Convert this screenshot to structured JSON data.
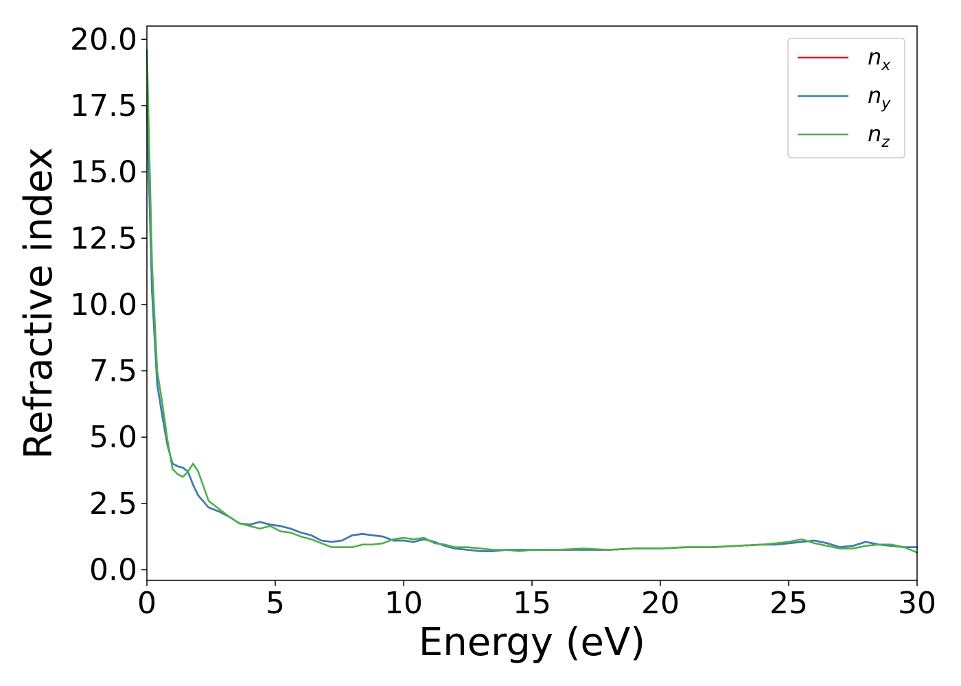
{
  "chart_data": {
    "type": "line",
    "title": "",
    "xlabel": "Energy (eV)",
    "ylabel": "Refractive index",
    "xlim": [
      0,
      30
    ],
    "ylim": [
      -0.4,
      20.5
    ],
    "xticks": [
      0,
      5,
      10,
      15,
      20,
      25,
      30
    ],
    "xtick_labels": [
      "0",
      "5",
      "10",
      "15",
      "20",
      "25",
      "30"
    ],
    "yticks": [
      0,
      2.5,
      5,
      7.5,
      10,
      12.5,
      15,
      17.5,
      20
    ],
    "ytick_labels": [
      "0.0",
      "2.5",
      "5.0",
      "7.5",
      "10.0",
      "12.5",
      "15.0",
      "17.5",
      "20.0"
    ],
    "grid": false,
    "legend_position": "top-right",
    "series": [
      {
        "name": "n_x",
        "legend_base": "n",
        "legend_sub": "x",
        "color": "#e41a1c",
        "x": [
          0,
          0.2,
          0.4,
          0.6,
          0.8,
          1.0,
          1.2,
          1.4,
          1.6,
          1.8,
          2.0,
          2.4,
          2.8,
          3.2,
          3.6,
          4.0,
          4.4,
          4.8,
          5.2,
          5.6,
          6.0,
          6.4,
          6.8,
          7.2,
          7.6,
          8.0,
          8.4,
          8.8,
          9.2,
          9.6,
          10.0,
          10.4,
          10.8,
          11.2,
          11.6,
          12.0,
          12.5,
          13.0,
          13.5,
          14.0,
          14.5,
          15.0,
          16.0,
          17.0,
          18.0,
          19.0,
          20.0,
          21.0,
          22.0,
          23.0,
          24.0,
          24.5,
          25.0,
          25.5,
          26.0,
          26.5,
          27.0,
          27.5,
          28.0,
          28.5,
          29.0,
          29.5,
          30.0
        ],
        "y": [
          17.5,
          10.5,
          7.0,
          5.8,
          4.7,
          4.0,
          3.9,
          3.85,
          3.7,
          3.2,
          2.8,
          2.35,
          2.2,
          2.0,
          1.75,
          1.7,
          1.8,
          1.7,
          1.65,
          1.55,
          1.4,
          1.3,
          1.1,
          1.05,
          1.1,
          1.3,
          1.35,
          1.3,
          1.25,
          1.1,
          1.1,
          1.05,
          1.15,
          1.05,
          0.9,
          0.8,
          0.75,
          0.7,
          0.7,
          0.75,
          0.75,
          0.75,
          0.75,
          0.75,
          0.75,
          0.8,
          0.8,
          0.85,
          0.85,
          0.9,
          0.95,
          0.95,
          1.0,
          1.05,
          1.1,
          1.0,
          0.85,
          0.9,
          1.05,
          0.95,
          0.9,
          0.85,
          0.85
        ]
      },
      {
        "name": "n_y",
        "legend_base": "n",
        "legend_sub": "y",
        "color": "#377eb8",
        "x": [
          0,
          0.2,
          0.4,
          0.6,
          0.8,
          1.0,
          1.2,
          1.4,
          1.6,
          1.8,
          2.0,
          2.4,
          2.8,
          3.2,
          3.6,
          4.0,
          4.4,
          4.8,
          5.2,
          5.6,
          6.0,
          6.4,
          6.8,
          7.2,
          7.6,
          8.0,
          8.4,
          8.8,
          9.2,
          9.6,
          10.0,
          10.4,
          10.8,
          11.2,
          11.6,
          12.0,
          12.5,
          13.0,
          13.5,
          14.0,
          14.5,
          15.0,
          16.0,
          17.0,
          18.0,
          19.0,
          20.0,
          21.0,
          22.0,
          23.0,
          24.0,
          24.5,
          25.0,
          25.5,
          26.0,
          26.5,
          27.0,
          27.5,
          28.0,
          28.5,
          29.0,
          29.5,
          30.0
        ],
        "y": [
          17.5,
          10.5,
          7.0,
          5.8,
          4.7,
          4.0,
          3.9,
          3.85,
          3.7,
          3.2,
          2.8,
          2.35,
          2.2,
          2.0,
          1.75,
          1.7,
          1.8,
          1.7,
          1.65,
          1.55,
          1.4,
          1.3,
          1.1,
          1.05,
          1.1,
          1.3,
          1.35,
          1.3,
          1.25,
          1.1,
          1.1,
          1.05,
          1.15,
          1.05,
          0.9,
          0.8,
          0.75,
          0.7,
          0.7,
          0.75,
          0.75,
          0.75,
          0.75,
          0.75,
          0.75,
          0.8,
          0.8,
          0.85,
          0.85,
          0.9,
          0.95,
          0.95,
          1.0,
          1.05,
          1.1,
          1.0,
          0.85,
          0.9,
          1.05,
          0.95,
          0.9,
          0.85,
          0.85
        ]
      },
      {
        "name": "n_z",
        "legend_base": "n",
        "legend_sub": "z",
        "color": "#4daf4a",
        "x": [
          0,
          0.2,
          0.4,
          0.6,
          0.8,
          1.0,
          1.2,
          1.4,
          1.6,
          1.8,
          2.0,
          2.4,
          2.8,
          3.2,
          3.6,
          4.0,
          4.4,
          4.8,
          5.2,
          5.6,
          6.0,
          6.4,
          6.8,
          7.2,
          7.6,
          8.0,
          8.4,
          8.8,
          9.2,
          9.6,
          10.0,
          10.4,
          10.8,
          11.2,
          11.6,
          12.0,
          12.5,
          13.0,
          13.5,
          14.0,
          14.5,
          15.0,
          16.0,
          17.0,
          18.0,
          19.0,
          20.0,
          21.0,
          22.0,
          23.0,
          24.0,
          24.5,
          25.0,
          25.5,
          26.0,
          26.5,
          27.0,
          27.5,
          28.0,
          28.5,
          29.0,
          29.5,
          30.0
        ],
        "y": [
          19.6,
          11.5,
          7.5,
          6.3,
          4.9,
          3.8,
          3.6,
          3.5,
          3.7,
          4.0,
          3.7,
          2.6,
          2.3,
          2.0,
          1.75,
          1.65,
          1.55,
          1.65,
          1.45,
          1.4,
          1.25,
          1.15,
          1.0,
          0.85,
          0.85,
          0.85,
          0.95,
          0.95,
          1.0,
          1.15,
          1.2,
          1.15,
          1.2,
          1.0,
          0.95,
          0.85,
          0.85,
          0.8,
          0.75,
          0.75,
          0.7,
          0.75,
          0.75,
          0.8,
          0.75,
          0.8,
          0.8,
          0.85,
          0.85,
          0.9,
          0.95,
          1.0,
          1.05,
          1.15,
          1.0,
          0.9,
          0.8,
          0.8,
          0.9,
          0.95,
          0.95,
          0.85,
          0.65
        ]
      }
    ]
  }
}
